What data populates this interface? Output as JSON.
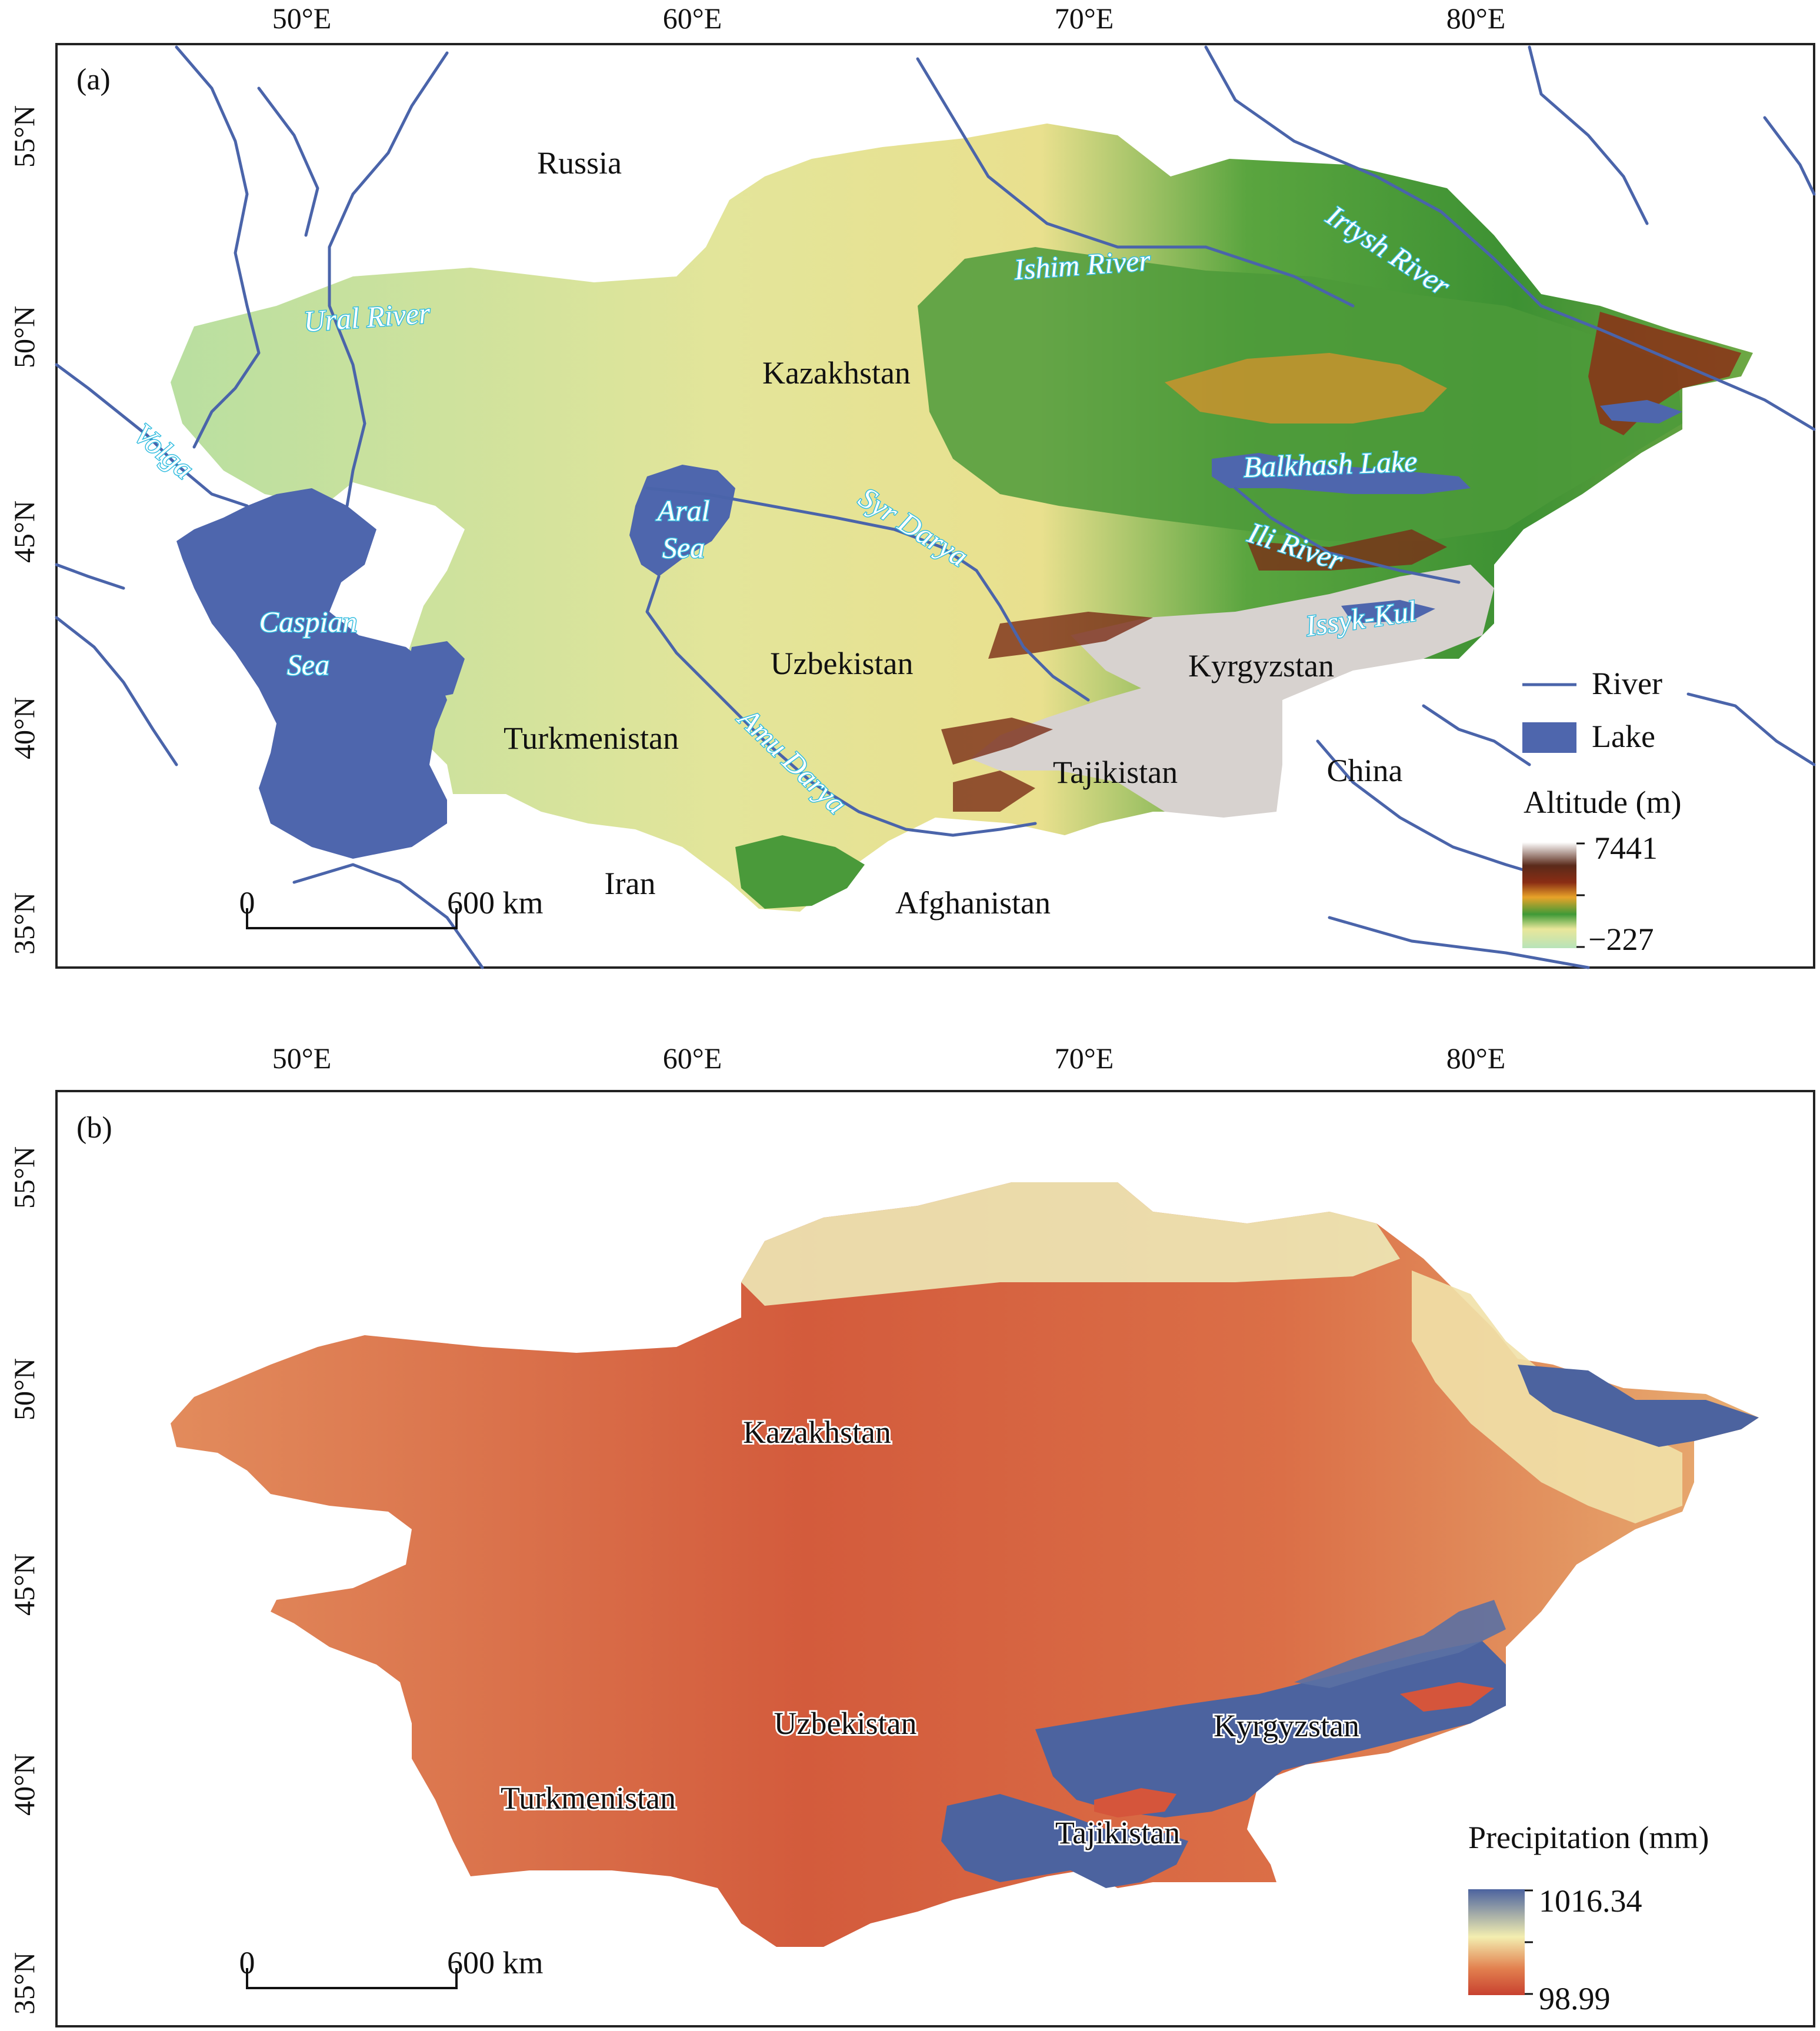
{
  "panels": {
    "a": {
      "tag": "(a)",
      "lon_ticks": [
        "50°E",
        "60°E",
        "70°E",
        "80°E"
      ],
      "lat_ticks": [
        "55°N",
        "50°N",
        "45°N",
        "40°N",
        "35°N"
      ],
      "countries": {
        "russia": "Russia",
        "kazakhstan": "Kazakhstan",
        "uzbekistan": "Uzbekistan",
        "turkmenistan": "Turkmenistan",
        "kyrgyzstan": "Kyrgyzstan",
        "tajikistan": "Tajikistan",
        "china": "China",
        "iran": "Iran",
        "afghanistan": "Afghanistan"
      },
      "water_bodies": {
        "ural": "Ural River",
        "volga": "Volga",
        "ishim": "Ishim River",
        "irtysh": "Irtysh River",
        "aral_1": "Aral",
        "aral_2": "Sea",
        "caspian_1": "Caspian",
        "caspian_2": "Sea",
        "syr": "Syr Darya",
        "amu": "Amu Darya",
        "balkhash": "Balkhash Lake",
        "ili": "Ili River",
        "issyk": "Issyk-Kul"
      },
      "scale_bar": {
        "start": "0",
        "end": "600 km"
      },
      "legend": {
        "river": "River",
        "lake": "Lake",
        "altitude_title": "Altitude (m)",
        "altitude_max": "7441",
        "altitude_min": "−227"
      },
      "colors": {
        "river": "#4a64aa",
        "lake": "#4e66ad",
        "river_label": "#33bde0"
      }
    },
    "b": {
      "tag": "(b)",
      "lon_ticks": [
        "50°E",
        "60°E",
        "70°E",
        "80°E"
      ],
      "lat_ticks": [
        "55°N",
        "50°N",
        "45°N",
        "40°N",
        "35°N"
      ],
      "countries": {
        "kazakhstan": "Kazakhstan",
        "uzbekistan": "Uzbekistan",
        "turkmenistan": "Turkmenistan",
        "kyrgyzstan": "Kyrgyzstan",
        "tajikistan": "Tajikistan"
      },
      "scale_bar": {
        "start": "0",
        "end": "600 km"
      },
      "legend": {
        "precip_title": "Precipitation (mm)",
        "precip_max": "1016.34",
        "precip_min": "98.99"
      },
      "colors": {
        "low": "#c8412f",
        "mid": "#f3eeb0",
        "high": "#4c639f"
      }
    }
  }
}
